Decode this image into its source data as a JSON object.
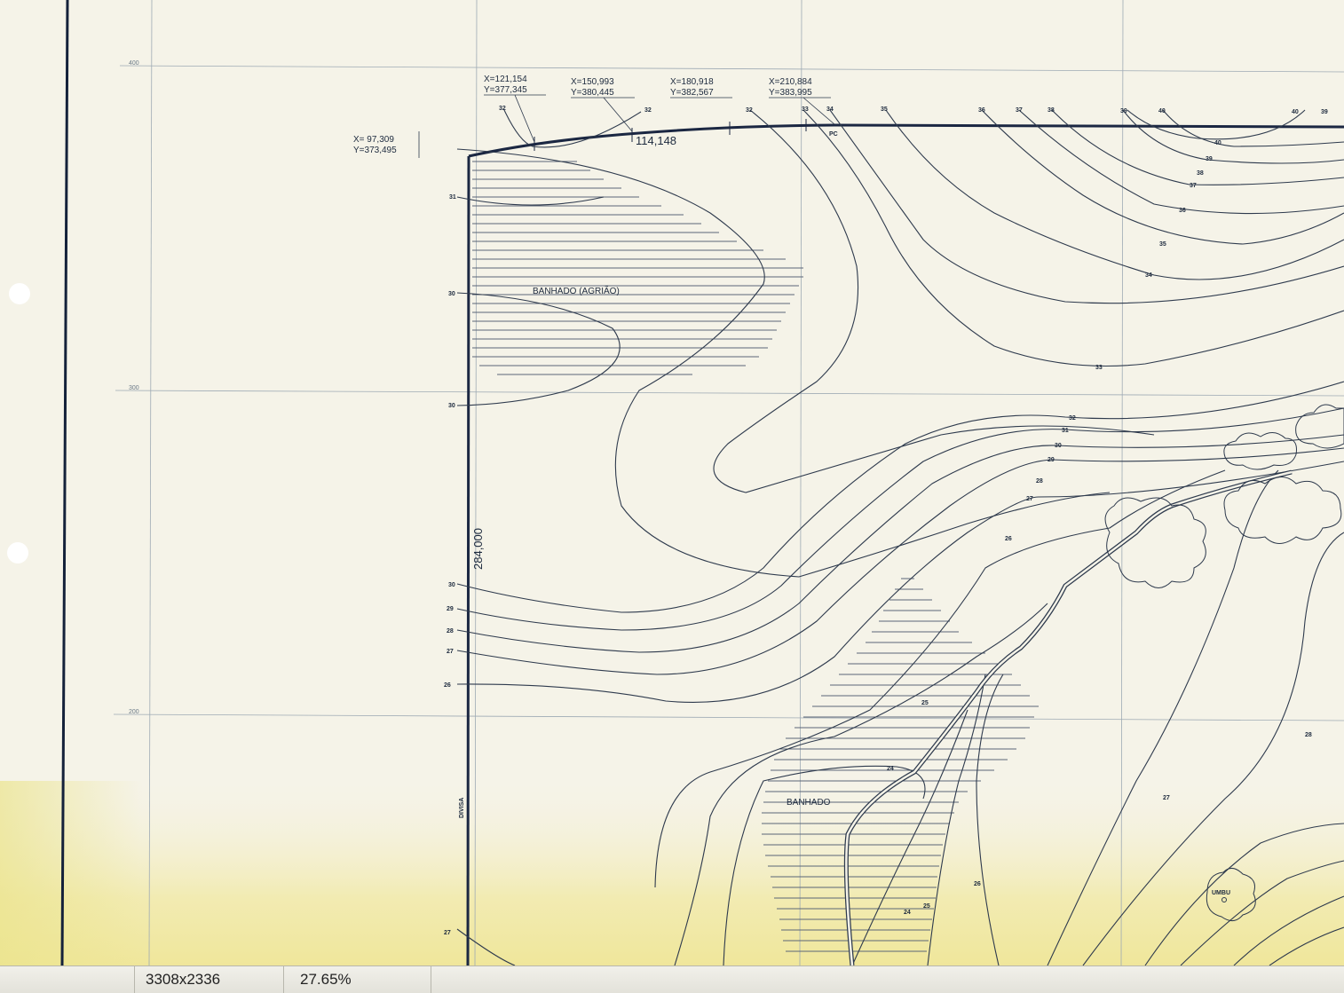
{
  "map": {
    "grid_labels": [
      "400",
      "300",
      "200"
    ],
    "coordinates": [
      {
        "x": "X= 97,309",
        "y": "Y=373,495"
      },
      {
        "x": "X=121,154",
        "y": "Y=377,345"
      },
      {
        "x": "X=150,993",
        "y": "Y=380,445"
      },
      {
        "x": "X=180,918",
        "y": "Y=382,567"
      },
      {
        "x": "X=210,884",
        "y": "Y=383,995"
      }
    ],
    "dimensions": [
      "114,148",
      "284,000"
    ],
    "place_labels": [
      "BANHADO (AGRIÃO)",
      "BANHADO",
      "DIVISA",
      "PC",
      "UMBU"
    ],
    "contour_labels_top": [
      "32",
      "32",
      "32",
      "33",
      "34",
      "35",
      "36",
      "37",
      "38",
      "39",
      "40",
      "40",
      "39"
    ],
    "contour_labels_right": [
      "40",
      "39",
      "38",
      "37",
      "36",
      "35",
      "34",
      "33",
      "32",
      "31",
      "30",
      "29",
      "28",
      "27",
      "26"
    ],
    "contour_labels_left": [
      "31",
      "30",
      "30",
      "30",
      "29",
      "28",
      "27",
      "26",
      "27"
    ],
    "contour_labels_bottom": [
      "25",
      "24",
      "24",
      "25",
      "26",
      "27",
      "28"
    ]
  },
  "statusbar": {
    "image_size": "3308x2336",
    "zoom": "27.65%"
  }
}
